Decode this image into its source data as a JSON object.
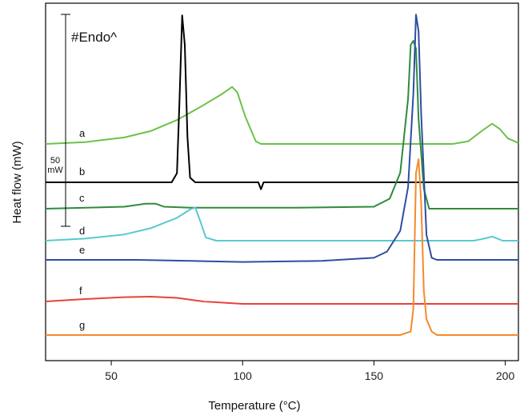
{
  "chart_data": {
    "type": "line",
    "xlabel": "Temperature (°C)",
    "ylabel": "Heat flow (mW)",
    "xlim": [
      25,
      205
    ],
    "xticks": [
      50,
      100,
      150,
      200
    ],
    "xtick_labels": [
      "50",
      "100",
      "150",
      "200"
    ],
    "grid": false,
    "legend": "none",
    "scale_bar": {
      "label_value": "50",
      "label_unit": "mW",
      "value": 50
    },
    "annotation": "#Endo^",
    "series": [
      {
        "label": "a",
        "color": "#6cc24a",
        "points": [
          [
            25,
            0
          ],
          [
            40,
            1
          ],
          [
            55,
            3.5
          ],
          [
            65,
            7
          ],
          [
            75,
            13
          ],
          [
            85,
            21
          ],
          [
            92,
            27
          ],
          [
            96,
            31
          ],
          [
            98,
            28
          ],
          [
            101,
            15
          ],
          [
            105,
            1.5
          ],
          [
            107,
            0
          ],
          [
            150,
            0
          ],
          [
            180,
            0
          ],
          [
            186,
            1.5
          ],
          [
            191,
            7
          ],
          [
            195,
            11
          ],
          [
            198,
            8
          ],
          [
            201,
            3
          ],
          [
            205,
            0.5
          ]
        ]
      },
      {
        "label": "b",
        "color": "#000000",
        "points": [
          [
            25,
            0
          ],
          [
            73,
            0
          ],
          [
            75,
            4
          ],
          [
            76,
            36
          ],
          [
            77,
            73
          ],
          [
            78,
            60
          ],
          [
            79,
            20
          ],
          [
            80,
            2
          ],
          [
            82,
            0
          ],
          [
            106,
            0
          ],
          [
            107,
            -3
          ],
          [
            108,
            0
          ],
          [
            205,
            0
          ]
        ]
      },
      {
        "label": "c",
        "color": "#2e8b3e",
        "points": [
          [
            25,
            0
          ],
          [
            55,
            1
          ],
          [
            63,
            2.5
          ],
          [
            67,
            2.5
          ],
          [
            70,
            1
          ],
          [
            80,
            0.5
          ],
          [
            120,
            0.5
          ],
          [
            150,
            1
          ],
          [
            156,
            5
          ],
          [
            160,
            18
          ],
          [
            163,
            55
          ],
          [
            164,
            82
          ],
          [
            165,
            84
          ],
          [
            166,
            80
          ],
          [
            167,
            45
          ],
          [
            169,
            10
          ],
          [
            171,
            0
          ],
          [
            205,
            0
          ]
        ]
      },
      {
        "label": "d",
        "color": "#5bc8d0",
        "points": [
          [
            25,
            0
          ],
          [
            40,
            1
          ],
          [
            55,
            3
          ],
          [
            65,
            6
          ],
          [
            75,
            11
          ],
          [
            80,
            15
          ],
          [
            82,
            16
          ],
          [
            84,
            9
          ],
          [
            86,
            1.5
          ],
          [
            90,
            0
          ],
          [
            150,
            0
          ],
          [
            188,
            0
          ],
          [
            192,
            1
          ],
          [
            195,
            2
          ],
          [
            197,
            1
          ],
          [
            199,
            0
          ],
          [
            205,
            0
          ]
        ]
      },
      {
        "label": "e",
        "color": "#2d4fa0",
        "points": [
          [
            25,
            0
          ],
          [
            60,
            0
          ],
          [
            80,
            -0.5
          ],
          [
            100,
            -1
          ],
          [
            130,
            -0.5
          ],
          [
            150,
            1
          ],
          [
            155,
            4
          ],
          [
            160,
            14
          ],
          [
            163,
            35
          ],
          [
            165,
            80
          ],
          [
            166,
            118
          ],
          [
            167,
            110
          ],
          [
            168,
            70
          ],
          [
            170,
            12
          ],
          [
            172,
            1
          ],
          [
            174,
            0
          ],
          [
            205,
            0
          ]
        ]
      },
      {
        "label": "f",
        "color": "#e8423a",
        "points": [
          [
            25,
            0
          ],
          [
            40,
            1
          ],
          [
            55,
            1.8
          ],
          [
            65,
            2
          ],
          [
            75,
            1.5
          ],
          [
            85,
            0
          ],
          [
            100,
            -1
          ],
          [
            130,
            -1
          ],
          [
            165,
            -1
          ],
          [
            175,
            -1
          ],
          [
            205,
            -1
          ]
        ]
      },
      {
        "label": "g",
        "color": "#f58a2c",
        "points": [
          [
            25,
            0
          ],
          [
            60,
            0
          ],
          [
            120,
            0
          ],
          [
            160,
            0
          ],
          [
            164,
            2
          ],
          [
            165,
            15
          ],
          [
            166,
            92
          ],
          [
            167,
            100
          ],
          [
            168,
            75
          ],
          [
            169,
            25
          ],
          [
            170,
            9
          ],
          [
            172,
            2
          ],
          [
            174,
            0
          ],
          [
            205,
            0
          ]
        ]
      }
    ]
  }
}
